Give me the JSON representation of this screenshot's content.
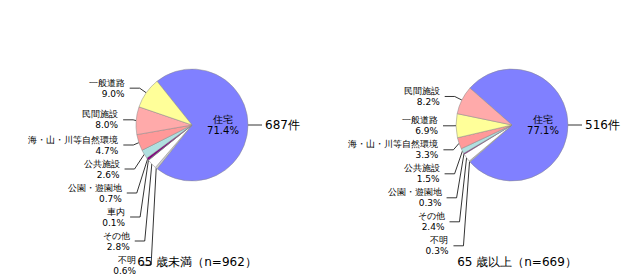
{
  "chart_data": [
    {
      "type": "pie",
      "title": "65 歳未満（n=962）",
      "annotation": "687件",
      "categories": [
        "住宅",
        "不明",
        "その他",
        "車内",
        "公園・遊園地",
        "公共施設",
        "海・山・川等自然環境",
        "民間施設",
        "一般道路"
      ],
      "values": [
        71.4,
        0.6,
        2.8,
        0.1,
        0.7,
        2.6,
        4.7,
        8.0,
        9.0
      ],
      "value_labels": [
        "71.4%",
        "0.6%",
        "2.8%",
        "0.1%",
        "0.7%",
        "2.6%",
        "4.7%",
        "8.0%",
        "9.0%"
      ],
      "colors": [
        "#8080ff",
        "#d0d0d0",
        "#ffffff",
        "#404040",
        "#800080",
        "#b0e0e0",
        "#ff9999",
        "#ffaaaa",
        "#ffff99"
      ],
      "data_labels": true
    },
    {
      "type": "pie",
      "title": "65 歳以上（n=669）",
      "annotation": "516件",
      "categories": [
        "住宅",
        "不明",
        "その他",
        "公園・遊園地",
        "公共施設",
        "海・山・川等自然環境",
        "一般道路",
        "民間施設"
      ],
      "values": [
        77.1,
        0.3,
        2.4,
        0.3,
        1.5,
        3.3,
        6.9,
        8.2
      ],
      "value_labels": [
        "77.1%",
        "0.3%",
        "2.4%",
        "0.3%",
        "1.5%",
        "3.3%",
        "6.9%",
        "8.2%"
      ],
      "colors": [
        "#8080ff",
        "#d0d0d0",
        "#ffffff",
        "#800080",
        "#b0e0e0",
        "#ff9999",
        "#ffff99",
        "#ffaaaa"
      ],
      "data_labels": true
    }
  ]
}
